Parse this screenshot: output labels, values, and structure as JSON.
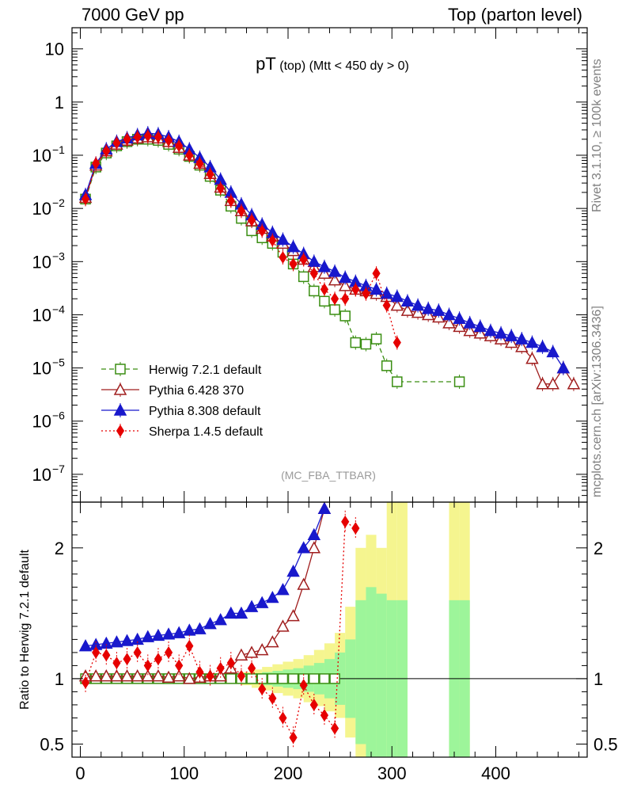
{
  "header": {
    "left": "7000 GeV pp",
    "right": "Top (parton level)"
  },
  "side_labels": {
    "rivet": "Rivet 3.1.10, ≥ 100k events",
    "mcplots": "mcplots.cern.ch [arXiv:1306.3436]"
  },
  "chart_data": [
    {
      "type": "line",
      "panel": "main",
      "title": "pT",
      "title_sub": "(top)",
      "title_cut": "(Mtt < 450 dy > 0)",
      "analysis": "(MC_FBA_TTBAR)",
      "yscale": "log",
      "xlim": [
        -8,
        488
      ],
      "ylim": [
        3e-08,
        25
      ],
      "y_ticks": [
        {
          "v": 10,
          "label": "10"
        },
        {
          "v": 1,
          "label": "1"
        },
        {
          "v": 0.1,
          "base": "10",
          "exp": "−1"
        },
        {
          "v": 0.01,
          "base": "10",
          "exp": "−2"
        },
        {
          "v": 0.001,
          "base": "10",
          "exp": "−3"
        },
        {
          "v": 0.0001,
          "base": "10",
          "exp": "−4"
        },
        {
          "v": 1e-05,
          "base": "10",
          "exp": "−5"
        },
        {
          "v": 1e-06,
          "base": "10",
          "exp": "−6"
        },
        {
          "v": 1e-07,
          "base": "10",
          "exp": "−7"
        }
      ],
      "legend_position": "lower-left",
      "series": [
        {
          "name": "Herwig 7.2.1 default",
          "color": "#3a8e12",
          "marker": "open-square",
          "dash": "6,4",
          "x": [
            5,
            15,
            25,
            35,
            45,
            55,
            65,
            75,
            85,
            95,
            105,
            115,
            125,
            135,
            145,
            155,
            165,
            175,
            185,
            195,
            205,
            215,
            225,
            235,
            245,
            255,
            265,
            275,
            285,
            295,
            305,
            365
          ],
          "y": [
            0.015,
            0.06,
            0.11,
            0.15,
            0.18,
            0.2,
            0.2,
            0.19,
            0.16,
            0.13,
            0.095,
            0.065,
            0.04,
            0.022,
            0.011,
            0.0065,
            0.0038,
            0.0028,
            0.0022,
            0.0015,
            0.0009,
            0.00052,
            0.00028,
            0.00018,
            0.000125,
            9.5e-05,
            3e-05,
            2.8e-05,
            3.5e-05,
            1.1e-05,
            5.5e-06,
            5.5e-06
          ]
        },
        {
          "name": "Pythia 6.428 370",
          "color": "#a01e1e",
          "marker": "open-triangle",
          "dash": "",
          "x": [
            5,
            15,
            25,
            35,
            45,
            55,
            65,
            75,
            85,
            95,
            105,
            115,
            125,
            135,
            145,
            155,
            165,
            175,
            185,
            195,
            205,
            215,
            225,
            235,
            245,
            255,
            265,
            275,
            285,
            295,
            305,
            315,
            325,
            335,
            345,
            355,
            365,
            375,
            385,
            395,
            405,
            415,
            425,
            435,
            445,
            455,
            465,
            475
          ],
          "y": [
            0.016,
            0.065,
            0.12,
            0.16,
            0.19,
            0.21,
            0.22,
            0.21,
            0.18,
            0.14,
            0.1,
            0.07,
            0.045,
            0.025,
            0.014,
            0.009,
            0.0058,
            0.0042,
            0.003,
            0.0022,
            0.0016,
            0.0011,
            0.0008,
            0.0006,
            0.00045,
            0.00035,
            0.0003,
            0.00028,
            0.00025,
            0.00022,
            0.00015,
            0.00012,
            0.00011,
            0.0001,
            9e-05,
            7e-05,
            6e-05,
            5e-05,
            4.5e-05,
            4e-05,
            3.5e-05,
            3e-05,
            2.5e-05,
            1.5e-05,
            5e-06,
            5e-06,
            1e-05,
            5e-06
          ]
        },
        {
          "name": "Pythia 8.308 default",
          "color": "#1818cc",
          "marker": "filled-triangle",
          "dash": "",
          "x": [
            5,
            15,
            25,
            35,
            45,
            55,
            65,
            75,
            85,
            95,
            105,
            115,
            125,
            135,
            145,
            155,
            165,
            175,
            185,
            195,
            205,
            215,
            225,
            235,
            245,
            255,
            265,
            275,
            285,
            295,
            305,
            315,
            325,
            335,
            345,
            355,
            365,
            375,
            385,
            395,
            405,
            415,
            425,
            435,
            445,
            455,
            465
          ],
          "y": [
            0.018,
            0.07,
            0.13,
            0.18,
            0.21,
            0.24,
            0.26,
            0.25,
            0.22,
            0.18,
            0.13,
            0.09,
            0.06,
            0.035,
            0.02,
            0.012,
            0.0075,
            0.005,
            0.0035,
            0.0026,
            0.0019,
            0.0014,
            0.001,
            0.0008,
            0.00065,
            0.0005,
            0.00042,
            0.00035,
            0.0003,
            0.00025,
            0.00022,
            0.00018,
            0.00015,
            0.00013,
            0.00012,
            0.0001,
            8.5e-05,
            7e-05,
            6e-05,
            5e-05,
            4.5e-05,
            4e-05,
            3.5e-05,
            3e-05,
            2.5e-05,
            2e-05,
            1e-05
          ]
        },
        {
          "name": "Sherpa 1.4.5 default",
          "color": "#e60000",
          "marker": "filled-diamond",
          "dash": "2,3",
          "x": [
            5,
            15,
            25,
            35,
            45,
            55,
            65,
            75,
            85,
            95,
            105,
            115,
            125,
            135,
            145,
            155,
            165,
            175,
            185,
            195,
            205,
            215,
            225,
            235,
            245,
            255,
            265,
            275,
            285,
            295,
            305
          ],
          "y": [
            0.015,
            0.07,
            0.12,
            0.17,
            0.2,
            0.22,
            0.23,
            0.22,
            0.19,
            0.15,
            0.1,
            0.07,
            0.044,
            0.024,
            0.014,
            0.009,
            0.006,
            0.0038,
            0.0025,
            0.0012,
            0.0009,
            0.0011,
            0.0006,
            0.0003,
            0.0002,
            0.0002,
            0.0003,
            0.00025,
            0.0006,
            0.00015,
            3e-05
          ]
        }
      ]
    },
    {
      "type": "line",
      "panel": "ratio",
      "ylabel": "Ratio to Herwig 7.2.1 default",
      "xlim": [
        -8,
        488
      ],
      "ylim": [
        0.4,
        2.35
      ],
      "x_ticks": [
        0,
        100,
        200,
        300,
        400
      ],
      "y_ticks": [
        0.5,
        1,
        2
      ],
      "reference_line": 1,
      "uncertainty_bands": [
        {
          "name": "1-sigma",
          "color": "#9df59a",
          "x": [
            140,
            150,
            160,
            170,
            180,
            190,
            200,
            210,
            220,
            230,
            240,
            250,
            260,
            270,
            280,
            290,
            300,
            310,
            360,
            370
          ],
          "lo": [
            0.99,
            0.98,
            0.97,
            0.96,
            0.95,
            0.94,
            0.93,
            0.92,
            0.9,
            0.88,
            0.85,
            0.8,
            0.7,
            0.5,
            0.4,
            0.4,
            0.4,
            0.4,
            0.4,
            0.4
          ],
          "hi": [
            1.01,
            1.02,
            1.03,
            1.04,
            1.05,
            1.06,
            1.07,
            1.08,
            1.1,
            1.12,
            1.15,
            1.2,
            1.3,
            1.6,
            1.7,
            1.65,
            1.6,
            1.6,
            1.6,
            1.6
          ]
        },
        {
          "name": "2-sigma",
          "color": "#f5f58f",
          "x": [
            140,
            150,
            160,
            170,
            180,
            190,
            200,
            210,
            220,
            230,
            240,
            250,
            260,
            270,
            280,
            290,
            300,
            310,
            360,
            370
          ],
          "lo": [
            0.98,
            0.96,
            0.95,
            0.93,
            0.91,
            0.89,
            0.87,
            0.85,
            0.82,
            0.79,
            0.75,
            0.7,
            0.55,
            0.4,
            0.4,
            0.4,
            0.4,
            0.4,
            0.4,
            0.4
          ],
          "hi": [
            1.02,
            1.04,
            1.05,
            1.07,
            1.09,
            1.11,
            1.13,
            1.15,
            1.18,
            1.22,
            1.27,
            1.35,
            1.55,
            2.0,
            2.1,
            2.0,
            2.35,
            2.35,
            2.35,
            2.35
          ]
        }
      ],
      "series": [
        {
          "name": "Herwig 7.2.1 default",
          "color": "#3a8e12",
          "marker": "open-square",
          "x": [
            5,
            15,
            25,
            35,
            45,
            55,
            65,
            75,
            85,
            95,
            105,
            115,
            125,
            135,
            145,
            155,
            165,
            175,
            185,
            195,
            205,
            215,
            225,
            235,
            245
          ],
          "y": [
            1,
            1,
            1,
            1,
            1,
            1,
            1,
            1,
            1,
            1,
            1,
            1,
            1,
            1,
            1,
            1,
            1,
            1,
            1,
            1,
            1,
            1,
            1,
            1,
            1
          ]
        },
        {
          "name": "Pythia 6.428 370",
          "color": "#a01e1e",
          "marker": "open-triangle",
          "x": [
            5,
            15,
            25,
            35,
            45,
            55,
            65,
            75,
            85,
            95,
            105,
            115,
            125,
            135,
            145,
            155,
            165,
            175,
            185,
            195,
            205,
            215,
            225,
            235
          ],
          "y": [
            1.02,
            1.02,
            1.02,
            1.02,
            1.02,
            1.02,
            1.02,
            1.02,
            1.01,
            1.02,
            1.0,
            1.01,
            1.02,
            1.02,
            1.08,
            1.18,
            1.2,
            1.22,
            1.28,
            1.4,
            1.48,
            1.72,
            2.0,
            2.3
          ]
        },
        {
          "name": "Pythia 8.308 default",
          "color": "#1818cc",
          "marker": "filled-triangle",
          "x": [
            5,
            15,
            25,
            35,
            45,
            55,
            65,
            75,
            85,
            95,
            105,
            115,
            125,
            135,
            145,
            155,
            165,
            175,
            185,
            195,
            205,
            215,
            225,
            235
          ],
          "y": [
            1.25,
            1.26,
            1.27,
            1.28,
            1.29,
            1.3,
            1.32,
            1.33,
            1.34,
            1.35,
            1.37,
            1.38,
            1.42,
            1.45,
            1.5,
            1.5,
            1.55,
            1.58,
            1.62,
            1.68,
            1.82,
            2.0,
            2.1,
            2.3
          ]
        },
        {
          "name": "Sherpa 1.4.5 default",
          "color": "#e60000",
          "marker": "filled-diamond",
          "x": [
            5,
            15,
            25,
            35,
            45,
            55,
            65,
            75,
            85,
            95,
            105,
            115,
            125,
            135,
            145,
            155,
            165,
            175,
            185,
            195,
            205,
            215,
            225,
            235,
            245,
            255,
            265
          ],
          "y": [
            0.97,
            1.2,
            1.18,
            1.12,
            1.15,
            1.2,
            1.1,
            1.15,
            1.2,
            1.1,
            1.25,
            1.05,
            1.02,
            1.08,
            1.12,
            1.02,
            1.08,
            0.92,
            0.85,
            0.7,
            0.55,
            0.95,
            0.8,
            0.72,
            0.62,
            2.2,
            2.15
          ]
        }
      ]
    }
  ]
}
